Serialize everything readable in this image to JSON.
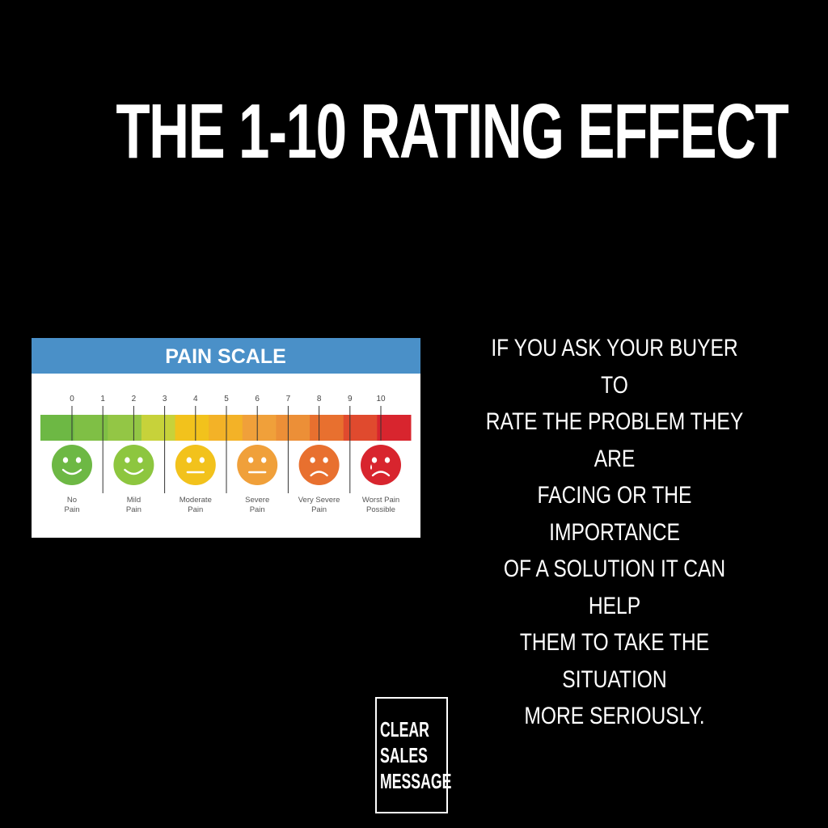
{
  "headline": "THE 1-10 RATING EFFECT",
  "pain_scale": {
    "title": "PAIN SCALE",
    "numbers": [
      "0",
      "1",
      "2",
      "3",
      "4",
      "5",
      "6",
      "7",
      "8",
      "9",
      "10"
    ],
    "faces": [
      {
        "line1": "No",
        "line2": "Pain",
        "color": "#6db844",
        "expression": "happy"
      },
      {
        "line1": "Mild",
        "line2": "Pain",
        "color": "#8dc63f",
        "expression": "happy"
      },
      {
        "line1": "Moderate",
        "line2": "Pain",
        "color": "#f2c21c",
        "expression": "neutral"
      },
      {
        "line1": "Severe",
        "line2": "Pain",
        "color": "#f0a03a",
        "expression": "neutral"
      },
      {
        "line1": "Very Severe",
        "line2": "Pain",
        "color": "#e8702f",
        "expression": "sad"
      },
      {
        "line1": "Worst Pain",
        "line2": "Possible",
        "color": "#d8252e",
        "expression": "crying"
      }
    ],
    "segment_colors": [
      "#6db844",
      "#7fbf45",
      "#93c645",
      "#c7d23a",
      "#f2c21c",
      "#f3b227",
      "#f0a03a",
      "#ec8f37",
      "#e8702f",
      "#e04a2e",
      "#d8252e"
    ],
    "header_color": "#4a90c8"
  },
  "body_text": [
    "IF YOU ASK YOUR BUYER TO",
    "RATE THE PROBLEM THEY ARE",
    "FACING OR THE IMPORTANCE",
    "OF A SOLUTION IT CAN HELP",
    "THEM TO TAKE THE SITUATION",
    "MORE SERIOUSLY."
  ],
  "logo": [
    "CLEAR",
    "SALES",
    "MESSAGE"
  ]
}
